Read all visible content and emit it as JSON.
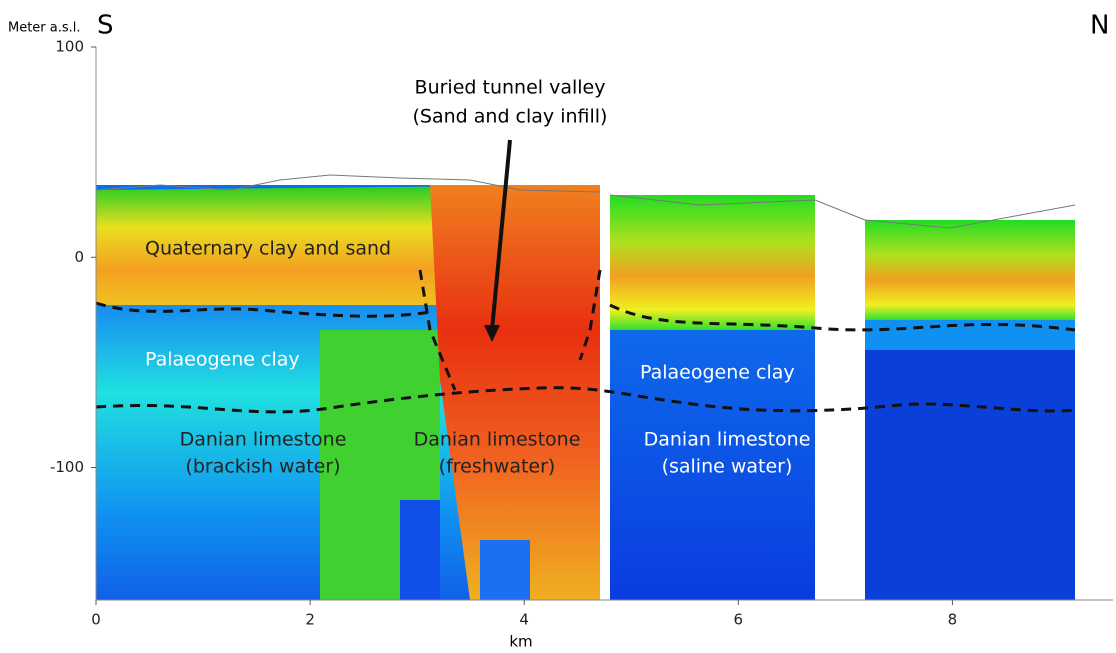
{
  "chart_data": {
    "type": "section",
    "y_label": "Meter a.s.l.",
    "x_label": "km",
    "left_label": "S",
    "right_label": "N",
    "xlim": [
      0,
      9.5
    ],
    "xticks": [
      0,
      2,
      4,
      6,
      8
    ],
    "ylim": [
      -163,
      100
    ],
    "yticks": [
      -100,
      0,
      100
    ],
    "annotations": [
      "Buried tunnel valley",
      "(Sand and clay infill)",
      "Quaternary clay and sand",
      "Palaeogene clay",
      "Palaeogene clay",
      "Danian limestone",
      "(brackish water)",
      "Danian limestone",
      "(freshwater)",
      "Danian limestone",
      "(saline water)"
    ]
  }
}
